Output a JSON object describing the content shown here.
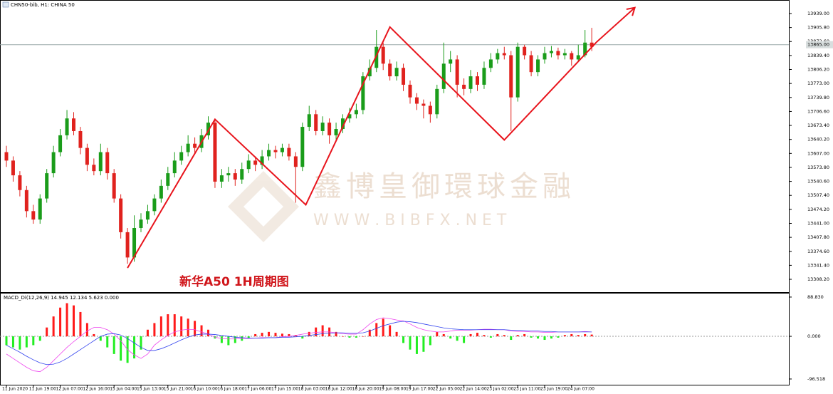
{
  "chart_data": [
    {
      "type": "candlestick",
      "title": "CHN50-bib, H1: CHINA 50",
      "annotation": "新华A50 1H周期图",
      "watermark": "鑫博皇御環球金融",
      "watermark_url": "W W W . B I B F X . N E T",
      "categories": [
        "11 Jun 2020",
        null,
        null,
        null,
        "11 Jun 19:00",
        null,
        null,
        null,
        "12 Jun 07:00",
        null,
        null,
        null,
        "12 Jun 16:00",
        null,
        null,
        null,
        "15 Jun 04:00",
        null,
        null,
        null,
        "15 Jun 13:00",
        null,
        null,
        null,
        "15 Jun 21:00",
        null,
        null,
        null,
        "16 Jun 10:00",
        null,
        null,
        null,
        "16 Jun 18:00",
        null,
        null,
        null,
        "17 Jun 06:00",
        null,
        null,
        null,
        "17 Jun 15:00",
        null,
        null,
        null,
        "18 Jun 03:00",
        null,
        null,
        null,
        "18 Jun 12:00",
        null,
        null,
        null,
        "18 Jun 20:00",
        null,
        null,
        null,
        "19 Jun 08:00",
        null,
        null,
        null,
        "19 Jun 17:00",
        null,
        null,
        null,
        "22 Jun 05:00",
        null,
        null,
        null,
        "22 Jun 14:00",
        null,
        null,
        null,
        "23 Jun 02:00",
        null,
        null,
        null,
        "23 Jun 11:00",
        null,
        null,
        null,
        "23 Jun 19:00",
        null,
        null,
        null,
        "24 Jun 07:00",
        null,
        null,
        null
      ],
      "open": [
        13610,
        13590,
        13555,
        13520,
        13470,
        13450,
        13500,
        13560,
        13610,
        13650,
        13690,
        13660,
        13620,
        13580,
        13565,
        13610,
        13560,
        13500,
        13420,
        13360,
        13430,
        13450,
        13470,
        13500,
        13530,
        13560,
        13590,
        13610,
        13630,
        13620,
        13650,
        13680,
        13540,
        13555,
        13560,
        13545,
        13570,
        13590,
        13580,
        13600,
        13615,
        13610,
        13620,
        13600,
        13575,
        13670,
        13700,
        13660,
        13680,
        13650,
        13665,
        13690,
        13700,
        13710,
        13790,
        13810,
        13860,
        13820,
        13790,
        13810,
        13770,
        13740,
        13725,
        13720,
        13700,
        13760,
        13820,
        13830,
        13770,
        13760,
        13790,
        13770,
        13810,
        13830,
        13845,
        13840,
        13740,
        13860,
        13840,
        13800,
        13830,
        13845,
        13850,
        13840,
        13845,
        13830,
        13840,
        13870
      ],
      "high": [
        13625,
        13600,
        13565,
        13530,
        13485,
        13510,
        13570,
        13625,
        13665,
        13710,
        13705,
        13670,
        13630,
        13595,
        13630,
        13620,
        13570,
        13510,
        13430,
        13460,
        13465,
        13485,
        13510,
        13545,
        13575,
        13610,
        13625,
        13650,
        13645,
        13665,
        13695,
        13690,
        13570,
        13575,
        13570,
        13585,
        13605,
        13600,
        13615,
        13630,
        13625,
        13630,
        13630,
        13610,
        13680,
        13720,
        13710,
        13695,
        13690,
        13680,
        13700,
        13715,
        13725,
        13800,
        13830,
        13900,
        13870,
        13830,
        13825,
        13820,
        13780,
        13750,
        13735,
        13730,
        13770,
        13870,
        13850,
        13840,
        13785,
        13805,
        13800,
        13825,
        13845,
        13855,
        13860,
        13850,
        13870,
        13865,
        13850,
        13840,
        13860,
        13862,
        13858,
        13855,
        13850,
        13865,
        13900,
        13905
      ],
      "low": [
        13575,
        13540,
        13505,
        13455,
        13440,
        13440,
        13490,
        13550,
        13600,
        13640,
        13650,
        13605,
        13565,
        13555,
        13555,
        13545,
        13490,
        13405,
        13345,
        13350,
        13420,
        13440,
        13460,
        13490,
        13520,
        13550,
        13580,
        13600,
        13605,
        13610,
        13640,
        13525,
        13525,
        13540,
        13530,
        13535,
        13560,
        13565,
        13570,
        13590,
        13595,
        13600,
        13590,
        13490,
        13565,
        13660,
        13650,
        13650,
        13630,
        13640,
        13655,
        13680,
        13690,
        13700,
        13780,
        13800,
        13805,
        13780,
        13780,
        13755,
        13725,
        13710,
        13690,
        13680,
        13690,
        13750,
        13800,
        13740,
        13745,
        13750,
        13755,
        13760,
        13800,
        13820,
        13830,
        13660,
        13730,
        13830,
        13790,
        13790,
        13820,
        13835,
        13830,
        13830,
        13815,
        13825,
        13835,
        13850
      ],
      "close": [
        13590,
        13555,
        13520,
        13470,
        13450,
        13500,
        13560,
        13610,
        13650,
        13690,
        13660,
        13620,
        13580,
        13565,
        13610,
        13560,
        13500,
        13420,
        13360,
        13430,
        13450,
        13470,
        13500,
        13530,
        13560,
        13590,
        13610,
        13630,
        13620,
        13650,
        13680,
        13540,
        13555,
        13560,
        13545,
        13570,
        13590,
        13580,
        13600,
        13615,
        13610,
        13620,
        13600,
        13575,
        13670,
        13700,
        13660,
        13680,
        13650,
        13665,
        13690,
        13700,
        13710,
        13790,
        13810,
        13860,
        13820,
        13790,
        13810,
        13770,
        13740,
        13725,
        13720,
        13700,
        13760,
        13820,
        13830,
        13770,
        13760,
        13790,
        13770,
        13810,
        13830,
        13845,
        13840,
        13740,
        13860,
        13840,
        13800,
        13830,
        13845,
        13850,
        13840,
        13845,
        13830,
        13840,
        13870,
        13860
      ],
      "up_color": "#1a9c1a",
      "down_color": "#e0221e",
      "ylim": [
        13277.8,
        13969.4
      ],
      "yticks": [
        {
          "value": 13939,
          "label": "13939.00"
        },
        {
          "value": 13905.8,
          "label": "13905.80"
        },
        {
          "value": 13872.6,
          "label": "13872.60"
        },
        {
          "value": 13839.4,
          "label": "13839.40"
        },
        {
          "value": 13806.2,
          "label": "13806.20"
        },
        {
          "value": 13773,
          "label": "13773.00"
        },
        {
          "value": 13739.8,
          "label": "13739.80"
        },
        {
          "value": 13706.6,
          "label": "13706.60"
        },
        {
          "value": 13673.4,
          "label": "13673.40"
        },
        {
          "value": 13640.2,
          "label": "13640.20"
        },
        {
          "value": 13607,
          "label": "13607.00"
        },
        {
          "value": 13573.8,
          "label": "13573.80"
        },
        {
          "value": 13540.6,
          "label": "13540.60"
        },
        {
          "value": 13507.4,
          "label": "13507.40"
        },
        {
          "value": 13474.2,
          "label": "13474.20"
        },
        {
          "value": 13441,
          "label": "13441.00"
        },
        {
          "value": 13407.8,
          "label": "13407.80"
        },
        {
          "value": 13374.6,
          "label": "13374.60"
        },
        {
          "value": 13341.4,
          "label": "13341.40"
        },
        {
          "value": 13308.2,
          "label": "13308.20"
        }
      ],
      "current_price": {
        "value": 13865,
        "label": "13865.00"
      },
      "zigzag": {
        "color": "#e8141c",
        "x": [
          18,
          31,
          44.5,
          57,
          74,
          87.7,
          93.4
        ],
        "y": [
          13335,
          13688,
          13485,
          13907,
          13639,
          13871,
          13953
        ]
      }
    },
    {
      "type": "macd",
      "title": "MACD_Di(12,26,9) 14.945 12.134 5.623 0.000",
      "histogram": {
        "up_color": "#ff1a1a",
        "down_color": "#22ee22",
        "values": [
          -20,
          -25,
          -30,
          -25,
          -20,
          -10,
          20,
          45,
          65,
          75,
          70,
          55,
          30,
          5,
          -10,
          -25,
          -40,
          -55,
          -60,
          -50,
          -30,
          15,
          30,
          45,
          50,
          50,
          45,
          40,
          35,
          25,
          15,
          -5,
          -15,
          -20,
          -15,
          -10,
          -5,
          5,
          8,
          10,
          8,
          6,
          5,
          3,
          -5,
          10,
          20,
          25,
          20,
          10,
          0,
          -3,
          -3,
          0,
          15,
          30,
          40,
          25,
          10,
          -15,
          -30,
          -40,
          -35,
          -20,
          10,
          5,
          -5,
          -10,
          -15,
          5,
          8,
          3,
          -3,
          5,
          3,
          -8,
          3,
          5,
          -3,
          -5,
          -8,
          -5,
          -3,
          3,
          5,
          3,
          5,
          4
        ]
      },
      "lines": [
        {
          "color": "#ee44ee",
          "values": [
            -40,
            -50,
            -60,
            -70,
            -78,
            -80,
            -70,
            -55,
            -40,
            -25,
            -12,
            0,
            12,
            20,
            20,
            15,
            5,
            -10,
            -30,
            -42,
            -50,
            -40,
            -20,
            -8,
            2,
            10,
            14,
            16,
            15,
            10,
            5,
            -2,
            -5,
            -6,
            -6,
            -5,
            -5,
            -4,
            -3,
            -3,
            -3,
            -1,
            0,
            2,
            5,
            7,
            9,
            10,
            10,
            8,
            6,
            5,
            5,
            15,
            28,
            38,
            42,
            40,
            37,
            35,
            28,
            20,
            15,
            12,
            10,
            10,
            12,
            14,
            14,
            14,
            15,
            16,
            16,
            15,
            15,
            12,
            11,
            11,
            10,
            10,
            9,
            9,
            10,
            10,
            10,
            10,
            11,
            10
          ]
        },
        {
          "color": "#3344ee",
          "values": [
            -20,
            -28,
            -36,
            -45,
            -53,
            -60,
            -64,
            -63,
            -58,
            -50,
            -40,
            -30,
            -20,
            -10,
            0,
            5,
            6,
            3,
            -5,
            -15,
            -25,
            -32,
            -32,
            -28,
            -22,
            -15,
            -8,
            -2,
            3,
            5,
            5,
            4,
            2,
            0,
            -2,
            -3,
            -4,
            -4,
            -4,
            -3,
            -3,
            -2,
            -2,
            -1,
            0,
            2,
            4,
            6,
            7,
            8,
            8,
            7,
            7,
            8,
            12,
            18,
            24,
            28,
            32,
            34,
            33,
            31,
            28,
            25,
            22,
            19,
            17,
            16,
            15,
            15,
            15,
            15,
            15,
            15,
            15,
            14,
            14,
            13,
            12,
            12,
            11,
            11,
            10,
            10,
            10,
            10,
            10,
            10
          ]
        }
      ],
      "ylim": [
        -109.5,
        96.8
      ],
      "yticks": [
        {
          "value": 88.83,
          "label": "88.830"
        },
        {
          "value": 0,
          "label": "0.000"
        },
        {
          "value": -96.518,
          "label": "-96.518"
        }
      ],
      "zero_line": true
    }
  ]
}
